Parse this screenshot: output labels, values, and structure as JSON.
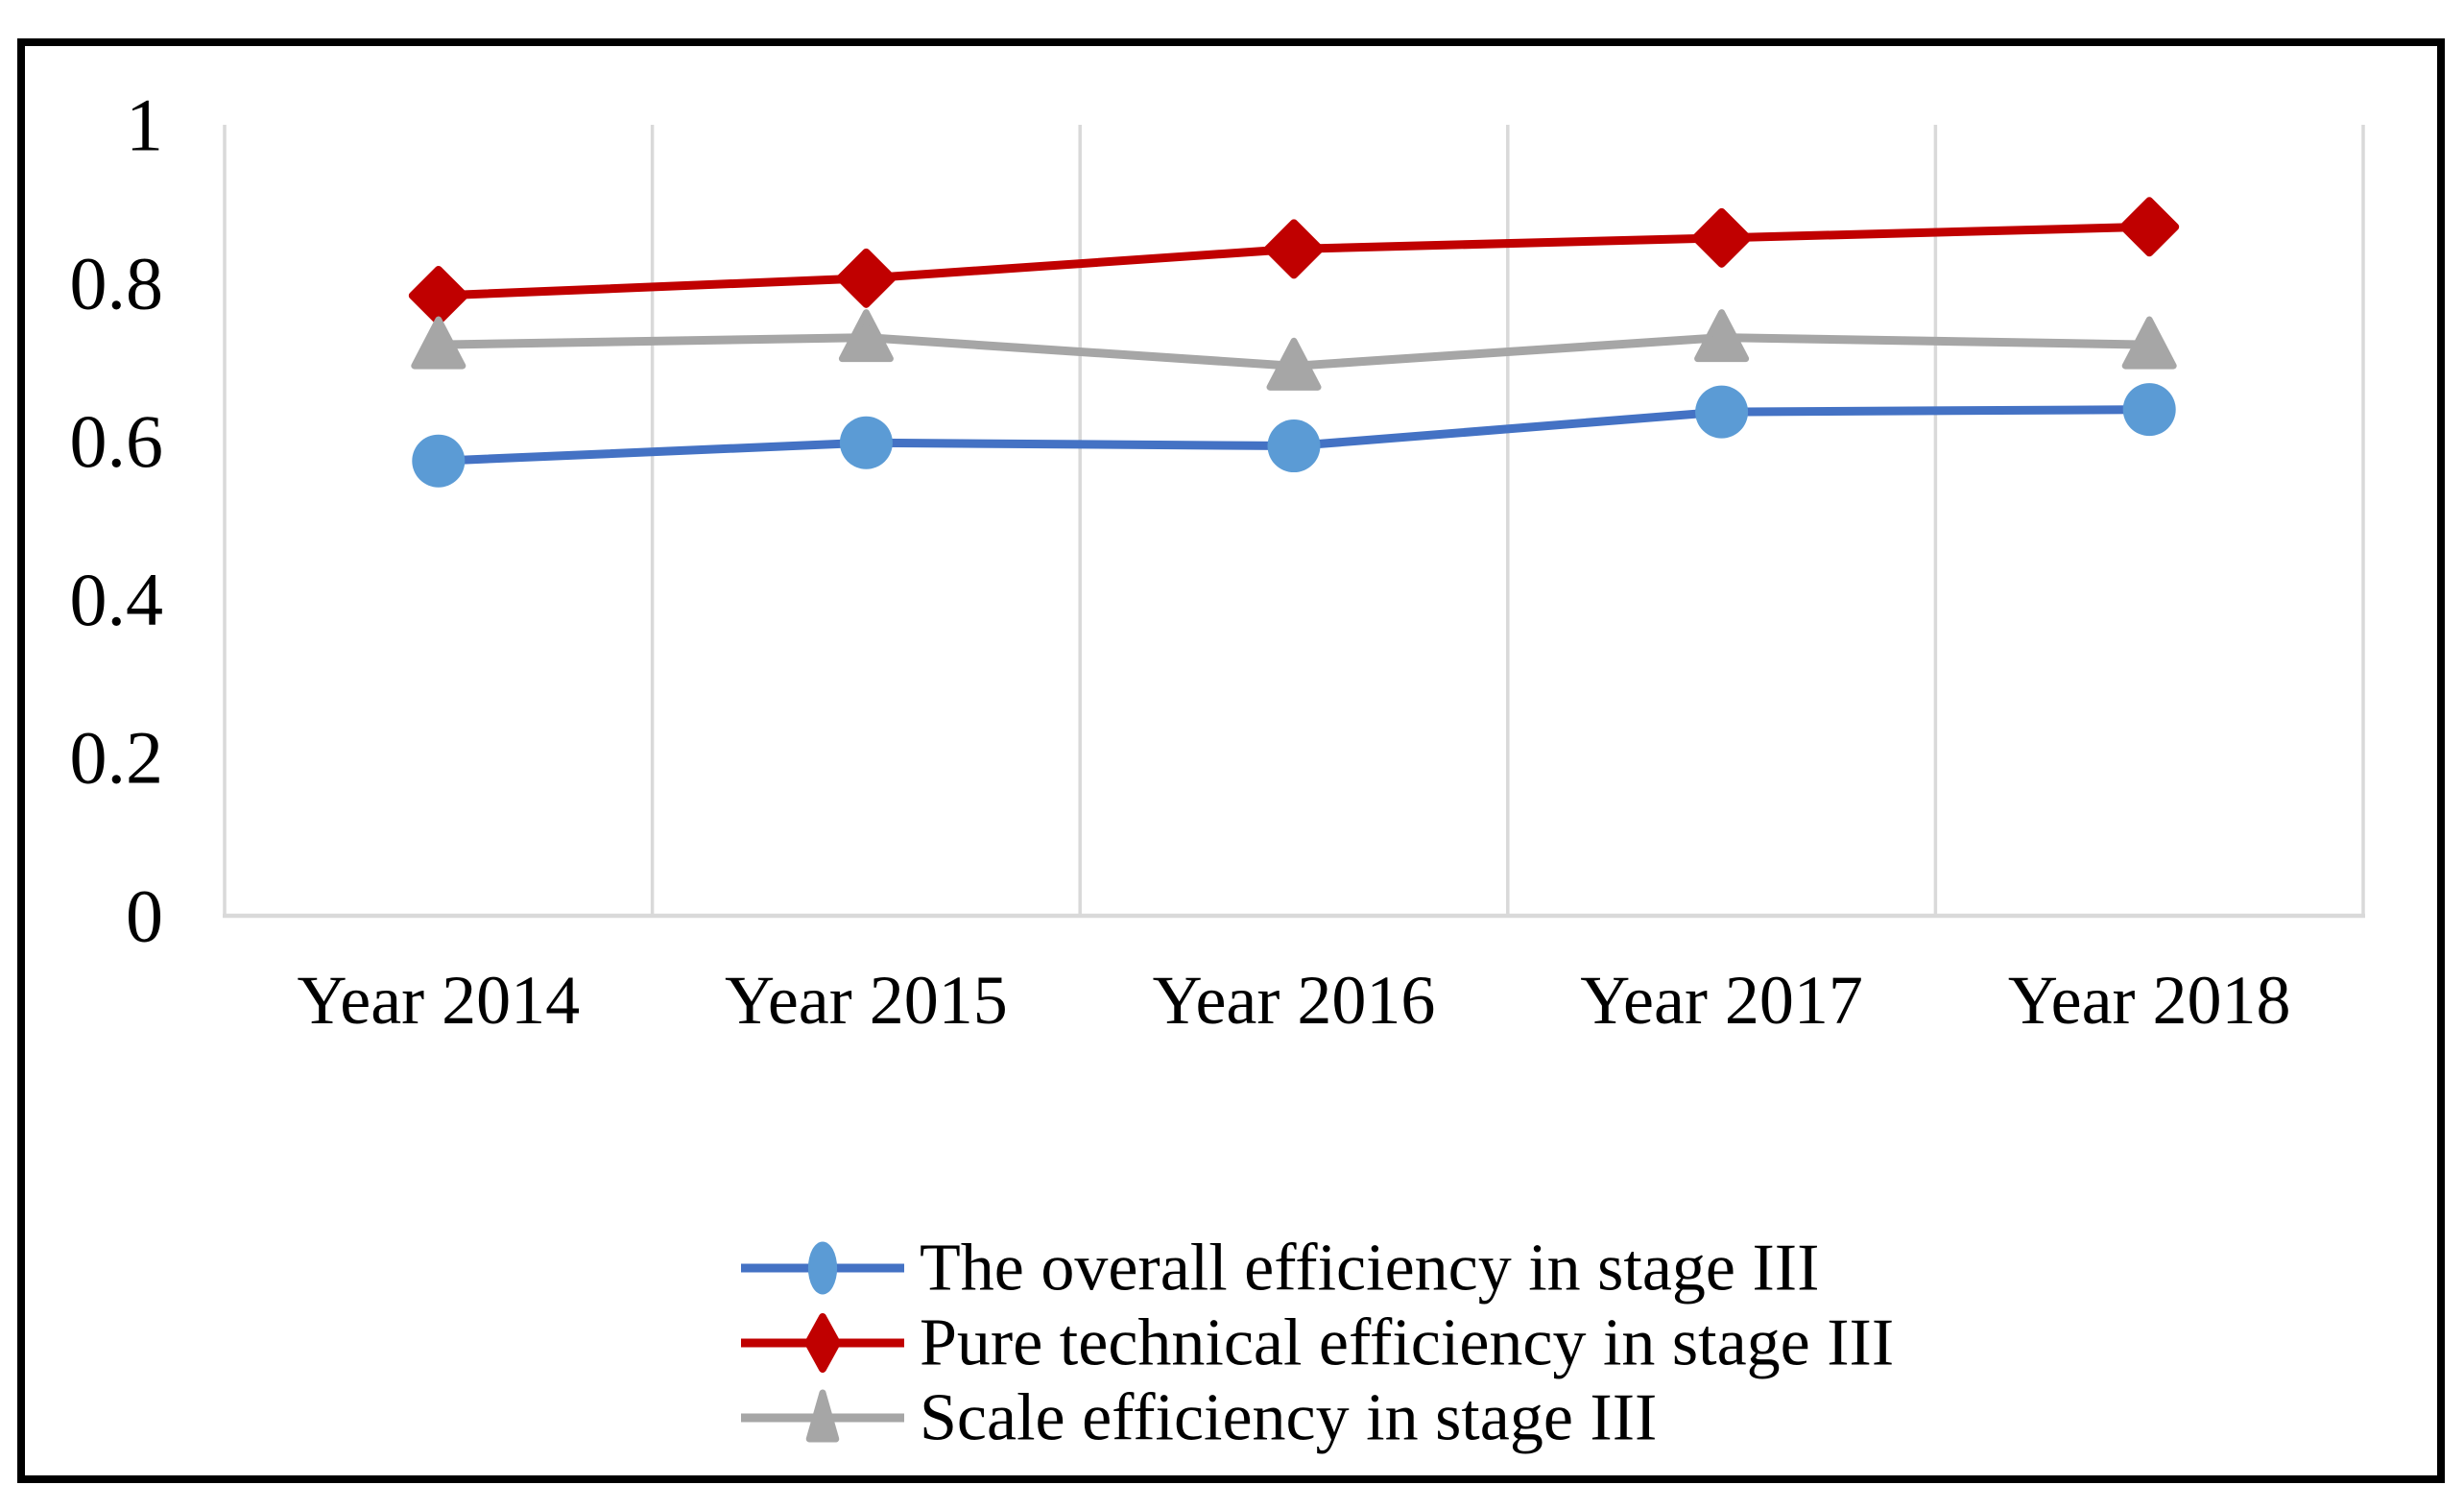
{
  "chart_data": {
    "type": "line",
    "categories": [
      "Year 2014",
      "Year 2015",
      "Year 2016",
      "Year 2017",
      "Year 2018"
    ],
    "series": [
      {
        "name": "The overall efficiency in stage III",
        "marker": "circle",
        "line_color": "#4472C4",
        "marker_color": "#5B9BD5",
        "values": [
          0.575,
          0.598,
          0.594,
          0.637,
          0.64
        ]
      },
      {
        "name": "Pure technical efficiency in stage III",
        "marker": "diamond",
        "line_color": "#C00000",
        "marker_color": "#C00000",
        "values": [
          0.784,
          0.806,
          0.843,
          0.857,
          0.871
        ]
      },
      {
        "name": "Scale efficiency in stage III",
        "marker": "triangle",
        "line_color": "#A6A6A6",
        "marker_color": "#A6A6A6",
        "values": [
          0.722,
          0.731,
          0.695,
          0.731,
          0.722
        ]
      }
    ],
    "y_axis": {
      "min": 0,
      "max": 1,
      "ticks": [
        {
          "label": "0",
          "value": 0
        },
        {
          "label": "0.2",
          "value": 0.2
        },
        {
          "label": "0.4",
          "value": 0.4
        },
        {
          "label": "0.6",
          "value": 0.6
        },
        {
          "label": "0.8",
          "value": 0.8
        },
        {
          "label": "1",
          "value": 1
        }
      ]
    },
    "grid": {
      "vertical": true,
      "horizontal": false
    },
    "legend_position": "bottom",
    "colors": {
      "gridline": "#D9D9D9",
      "axis_line": "#D9D9D9",
      "border": "#000000",
      "background": "#FFFFFF",
      "text": "#000000"
    }
  }
}
